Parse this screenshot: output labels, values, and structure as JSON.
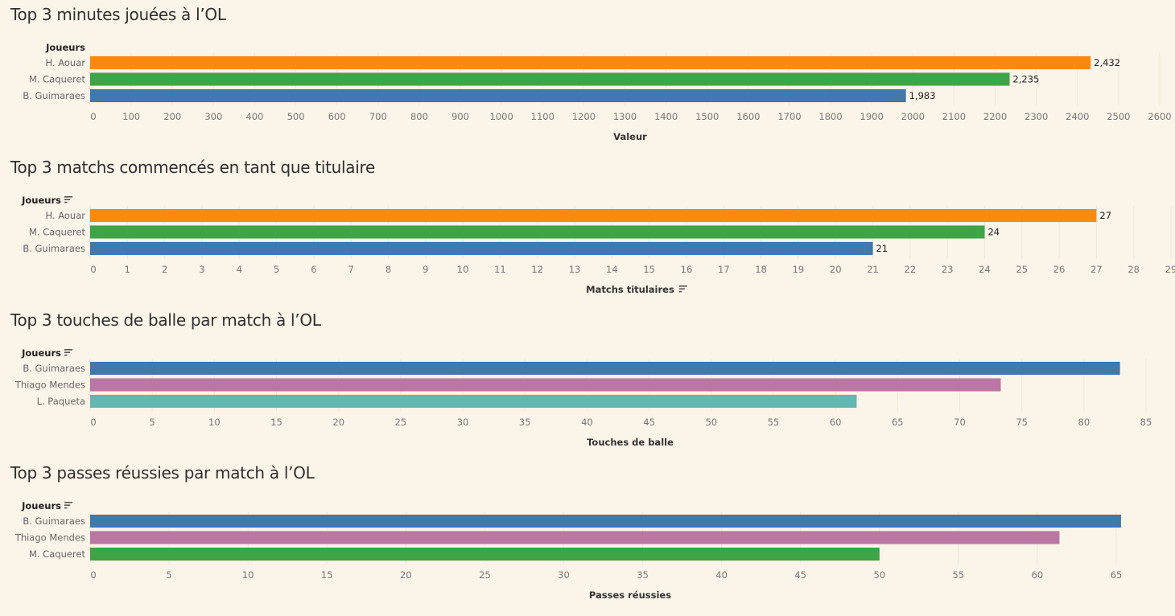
{
  "chart_data": [
    {
      "type": "bar",
      "orientation": "horizontal",
      "title": "Top 3 minutes jouées à l’OL",
      "row_header": "Joueurs",
      "row_header_sort_icon": false,
      "categories": [
        "H. Aouar",
        "M. Caqueret",
        "B. Guimaraes"
      ],
      "values": [
        2432,
        2235,
        1983
      ],
      "value_labels": [
        "2,432",
        "2,235",
        "1,983"
      ],
      "colors": [
        "#ff8a0a",
        "#3fa446",
        "#4079ac"
      ],
      "xlabel": "Valeur",
      "xlabel_sort_icon": false,
      "xlim": [
        0,
        2600
      ],
      "xticks": [
        0,
        100,
        200,
        300,
        400,
        500,
        600,
        700,
        800,
        900,
        1000,
        1100,
        1200,
        1300,
        1400,
        1500,
        1600,
        1700,
        1800,
        1900,
        2000,
        2100,
        2200,
        2300,
        2400,
        2500,
        2600
      ],
      "grid": false,
      "legend": "none"
    },
    {
      "type": "bar",
      "orientation": "horizontal",
      "title": "Top 3 matchs commencés en tant que titulaire",
      "row_header": "Joueurs",
      "row_header_sort_icon": true,
      "categories": [
        "H. Aouar",
        "M. Caqueret",
        "B. Guimaraes"
      ],
      "values": [
        27,
        24,
        21
      ],
      "value_labels": [
        "27",
        "24",
        "21"
      ],
      "colors": [
        "#ff8a0a",
        "#3fa446",
        "#4079ac"
      ],
      "xlabel": "Matchs titulaires",
      "xlabel_sort_icon": true,
      "xlim": [
        0,
        29
      ],
      "xticks": [
        0,
        1,
        2,
        3,
        4,
        5,
        6,
        7,
        8,
        9,
        10,
        11,
        12,
        13,
        14,
        15,
        16,
        17,
        18,
        19,
        20,
        21,
        22,
        23,
        24,
        25,
        26,
        27,
        28,
        29
      ],
      "grid": false,
      "legend": "none"
    },
    {
      "type": "bar",
      "orientation": "horizontal",
      "title": "Top 3 touches de balle par match à l’OL",
      "row_header": "Joueurs",
      "row_header_sort_icon": true,
      "categories": [
        "B. Guimaraes",
        "Thiago Mendes",
        "L. Paqueta"
      ],
      "values": [
        82.9,
        73.3,
        61.7
      ],
      "value_labels": [],
      "colors": [
        "#4079ac",
        "#bb77a3",
        "#62b8b0"
      ],
      "xlabel": "Touches de balle",
      "xlabel_sort_icon": false,
      "xlim": [
        0,
        85
      ],
      "xticks": [
        0,
        5,
        10,
        15,
        20,
        25,
        30,
        35,
        40,
        45,
        50,
        55,
        60,
        65,
        70,
        75,
        80,
        85
      ],
      "grid": false,
      "legend": "none"
    },
    {
      "type": "bar",
      "orientation": "horizontal",
      "title": "Top 3 passes réussies par match à l’OL",
      "row_header": "Joueurs",
      "row_header_sort_icon": true,
      "categories": [
        "B. Guimaraes",
        "Thiago Mendes",
        "M. Caqueret"
      ],
      "values": [
        65.3,
        61.4,
        50.0
      ],
      "value_labels": [],
      "colors": [
        "#4079ac",
        "#bb77a3",
        "#3fa446"
      ],
      "xlabel": "Passes réussies",
      "xlabel_sort_icon": false,
      "xlim": [
        0,
        65
      ],
      "xticks": [
        0,
        5,
        10,
        15,
        20,
        25,
        30,
        35,
        40,
        45,
        50,
        55,
        60,
        65
      ],
      "grid": false,
      "legend": "none"
    }
  ]
}
